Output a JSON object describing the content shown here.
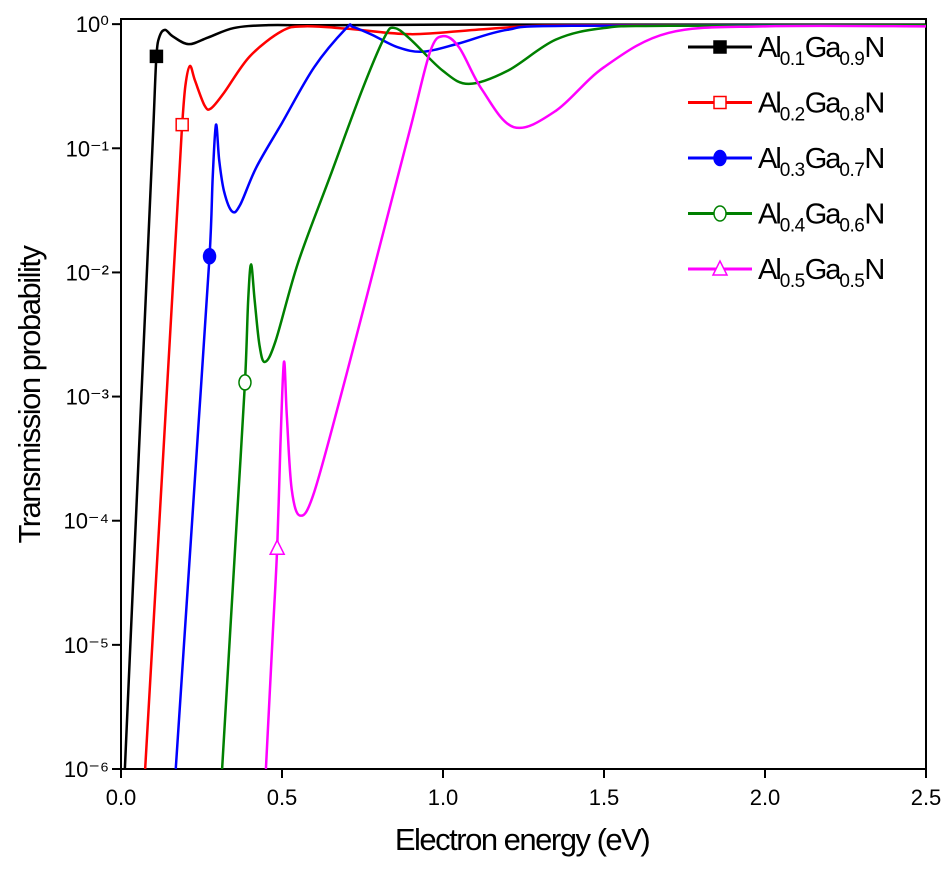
{
  "chart_data": {
    "type": "line",
    "xlabel": "Electron energy (eV)",
    "ylabel": "Transmission probability",
    "xlim": [
      0,
      2.5
    ],
    "ylim": [
      1e-06,
      1.1
    ],
    "log_y": true,
    "legend": "upper right",
    "xticks": [
      {
        "value": 0,
        "label": "0.0"
      },
      0.5,
      {
        "value": 1,
        "label": "1.0"
      },
      1.5,
      {
        "value": 2,
        "label": "2.0"
      },
      2.5
    ],
    "yticks": [
      {
        "value": 1e-06,
        "label": "10⁻⁶"
      },
      {
        "value": 1e-05,
        "label": "10⁻⁵"
      },
      {
        "value": 0.0001,
        "label": "10⁻⁴"
      },
      {
        "value": 0.001,
        "label": "10⁻³"
      },
      {
        "value": 0.01,
        "label": "10⁻²"
      },
      {
        "value": 0.1,
        "label": "10⁻¹"
      },
      {
        "value": 1,
        "label": "10⁰"
      }
    ],
    "series": [
      {
        "name": "Al0.1Ga0.9N",
        "color": "#000000",
        "marker": "square",
        "marker_fill": "filled",
        "marker_x": 0.11,
        "marker_y": 0.55,
        "x": [
          0.012,
          0.05,
          0.08,
          0.1,
          0.11,
          0.12,
          0.137,
          0.16,
          0.21,
          0.27,
          0.35,
          0.45,
          0.6,
          1.0,
          1.8,
          2.5
        ],
        "values": [
          1e-06,
          0.00017,
          0.0095,
          0.14,
          0.55,
          0.8,
          0.9,
          0.8,
          0.69,
          0.78,
          0.93,
          0.98,
          0.98,
          0.99,
          0.99,
          0.99
        ]
      },
      {
        "name": "Al0.2Ga0.8N",
        "color": "#ff0000",
        "marker": "square",
        "marker_fill": "open",
        "marker_x": 0.19,
        "marker_y": 0.155,
        "x": [
          0.075,
          0.12,
          0.16,
          0.18,
          0.19,
          0.2,
          0.214,
          0.23,
          0.26,
          0.28,
          0.32,
          0.4,
          0.5,
          0.57,
          0.7,
          0.9,
          1.1,
          1.3,
          1.6,
          2.5
        ],
        "values": [
          1e-06,
          0.000107,
          0.0069,
          0.055,
          0.155,
          0.32,
          0.46,
          0.35,
          0.22,
          0.21,
          0.28,
          0.55,
          0.88,
          0.96,
          0.92,
          0.83,
          0.9,
          0.97,
          0.98,
          0.98
        ]
      },
      {
        "name": "Al0.3Ga0.7N",
        "color": "#0000ff",
        "marker": "circle",
        "marker_fill": "filled",
        "marker_x": 0.275,
        "marker_y": 0.0135,
        "x": [
          0.17,
          0.2,
          0.24,
          0.275,
          0.285,
          0.295,
          0.305,
          0.32,
          0.345,
          0.37,
          0.42,
          0.5,
          0.6,
          0.7,
          0.72,
          0.78,
          0.86,
          0.94,
          1.05,
          1.2,
          1.4,
          2.5
        ],
        "values": [
          1e-06,
          1.5e-05,
          0.00056,
          0.0135,
          0.06,
          0.155,
          0.08,
          0.045,
          0.031,
          0.035,
          0.07,
          0.16,
          0.45,
          0.93,
          0.95,
          0.82,
          0.65,
          0.6,
          0.7,
          0.9,
          0.97,
          0.98
        ]
      },
      {
        "name": "Al0.4Ga0.6N",
        "color": "#008000",
        "marker": "circle",
        "marker_fill": "open",
        "marker_x": 0.385,
        "marker_y": 0.0013,
        "x": [
          0.314,
          0.34,
          0.36,
          0.385,
          0.395,
          0.404,
          0.415,
          0.43,
          0.447,
          0.48,
          0.55,
          0.65,
          0.75,
          0.82,
          0.85,
          0.9,
          1.0,
          1.08,
          1.2,
          1.35,
          1.5,
          1.7,
          2.5
        ],
        "values": [
          1e-06,
          1.4e-05,
          0.000105,
          0.0013,
          0.006,
          0.0116,
          0.006,
          0.0026,
          0.0019,
          0.0028,
          0.012,
          0.06,
          0.3,
          0.8,
          0.93,
          0.75,
          0.42,
          0.33,
          0.42,
          0.75,
          0.93,
          0.97,
          0.98
        ]
      },
      {
        "name": "Al0.5Ga0.5N",
        "color": "#ff00ff",
        "marker": "triangle",
        "marker_fill": "open",
        "marker_x": 0.485,
        "marker_y": 6e-05,
        "x": [
          0.45,
          0.47,
          0.485,
          0.495,
          0.506,
          0.515,
          0.53,
          0.556,
          0.6,
          0.7,
          0.8,
          0.9,
          0.96,
          1.0,
          1.05,
          1.12,
          1.22,
          1.35,
          1.5,
          1.7,
          2.0,
          2.5
        ],
        "values": [
          1e-06,
          1.05e-05,
          6e-05,
          0.0004,
          0.0019,
          0.0007,
          0.00018,
          0.00011,
          0.00017,
          0.0015,
          0.015,
          0.15,
          0.6,
          0.8,
          0.65,
          0.3,
          0.148,
          0.2,
          0.45,
          0.85,
          0.96,
          0.96
        ]
      }
    ]
  }
}
